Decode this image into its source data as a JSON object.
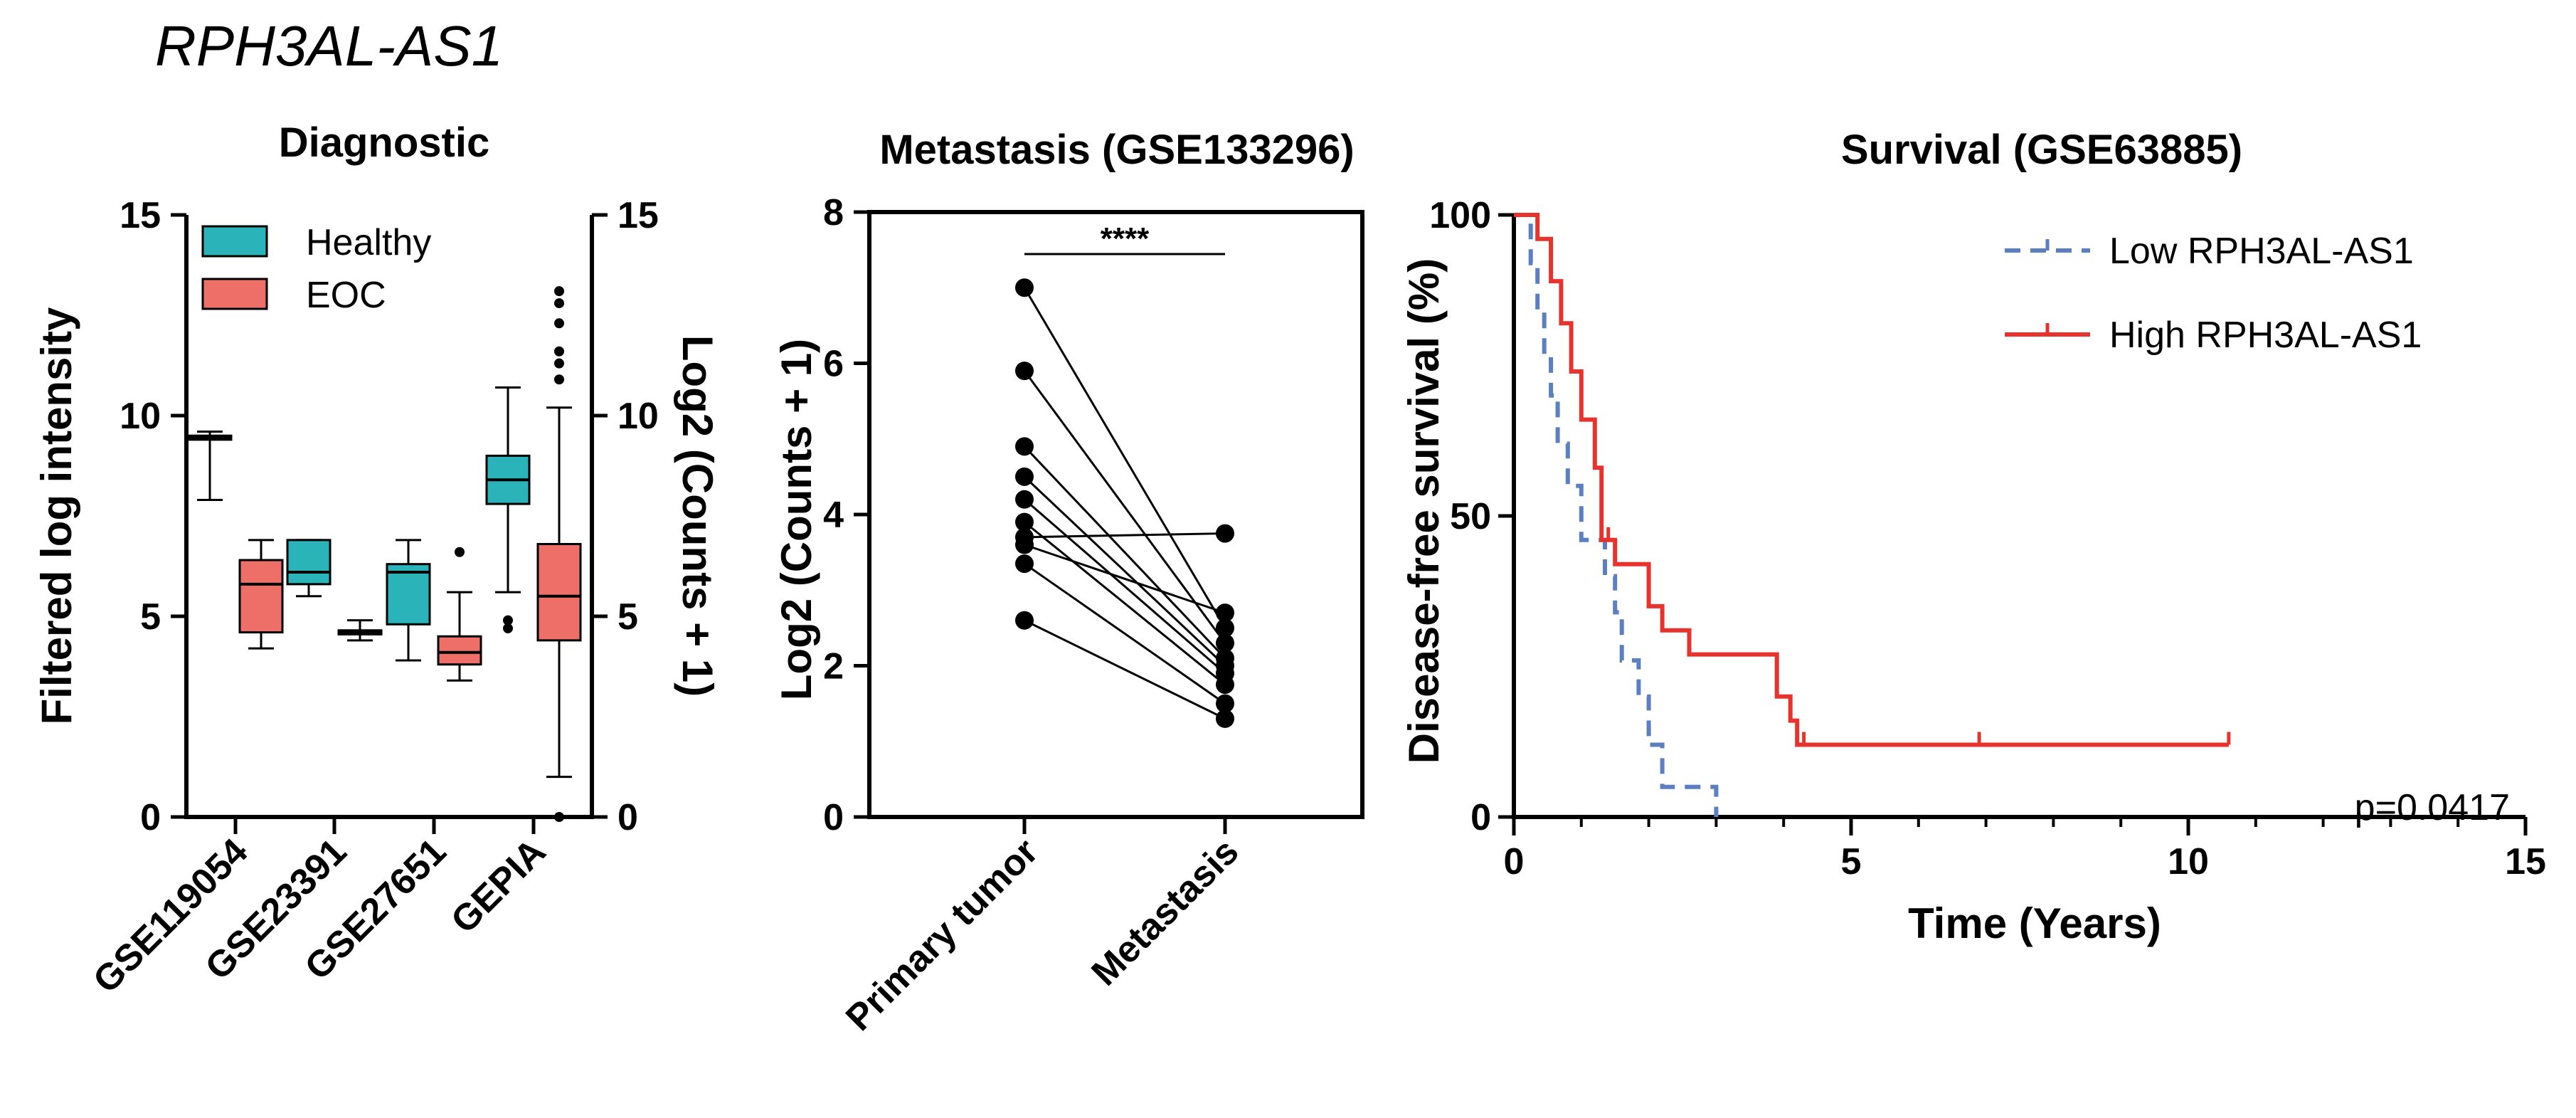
{
  "figure_title": "RPH3AL-AS1",
  "colors": {
    "healthy": "#2ab3b8",
    "eoc": "#ee6e68",
    "low": "#5b7fc0",
    "high": "#e8322d",
    "line": "#000000"
  },
  "chart_data": [
    {
      "type": "box",
      "title": "Diagnostic",
      "ylabel": "Filtered log intensity",
      "ylabel_right": "Log2 (Counts + 1)",
      "ylim": [
        0,
        15
      ],
      "yticks": [
        "0",
        "5",
        "10",
        "15"
      ],
      "yticks_right": [
        "0",
        "5",
        "10",
        "15"
      ],
      "categories": [
        "GSE119054",
        "GSE23391",
        "GSE27651",
        "GEPIA"
      ],
      "legend": [
        "Healthy",
        "EOC"
      ],
      "series": [
        {
          "name": "Healthy",
          "boxes": [
            {
              "category": "GSE119054",
              "min": 7.9,
              "q1": 9.4,
              "median": 9.45,
              "q3": 9.5,
              "max": 9.6,
              "outliers": []
            },
            {
              "category": "GSE23391",
              "min": 5.5,
              "q1": 5.8,
              "median": 6.1,
              "q3": 6.9,
              "max": 6.9,
              "outliers": []
            },
            {
              "category": "GSE27651",
              "min": 3.9,
              "q1": 4.8,
              "median": 6.1,
              "q3": 6.3,
              "max": 6.9,
              "outliers": []
            },
            {
              "category": "GEPIA",
              "min": 5.6,
              "q1": 7.8,
              "median": 8.4,
              "q3": 9.0,
              "max": 10.7,
              "outliers": [
                4.7,
                4.9
              ]
            }
          ]
        },
        {
          "name": "EOC",
          "boxes": [
            {
              "category": "GSE119054",
              "min": 4.2,
              "q1": 4.6,
              "median": 5.8,
              "q3": 6.4,
              "max": 6.9,
              "outliers": []
            },
            {
              "category": "GSE23391",
              "min": 4.4,
              "q1": 4.55,
              "median": 4.6,
              "q3": 4.65,
              "max": 4.9,
              "outliers": []
            },
            {
              "category": "GSE27651",
              "min": 3.4,
              "q1": 3.8,
              "median": 4.1,
              "q3": 4.5,
              "max": 5.6,
              "outliers": [
                6.6
              ]
            },
            {
              "category": "GEPIA",
              "min": 1.0,
              "q1": 4.4,
              "median": 5.5,
              "q3": 6.8,
              "max": 10.2,
              "outliers": [
                0.0,
                10.9,
                11.3,
                11.6,
                12.3,
                12.8,
                13.1
              ]
            }
          ]
        }
      ]
    },
    {
      "type": "paired_dot",
      "title": "Metastasis (GSE133296)",
      "ylabel": "Log2 (Counts + 1)",
      "ylim": [
        0,
        8
      ],
      "yticks": [
        "0",
        "2",
        "4",
        "6",
        "8"
      ],
      "categories": [
        "Primary tumor",
        "Metastasis"
      ],
      "significance": "****",
      "pairs": [
        [
          7.0,
          2.5
        ],
        [
          5.9,
          2.3
        ],
        [
          4.9,
          2.1
        ],
        [
          4.5,
          2.0
        ],
        [
          4.2,
          1.9
        ],
        [
          3.9,
          1.75
        ],
        [
          3.7,
          3.75
        ],
        [
          3.6,
          2.7
        ],
        [
          3.35,
          1.5
        ],
        [
          2.6,
          1.3
        ]
      ]
    },
    {
      "type": "line",
      "title": "Survival (GSE63885)",
      "xlabel": "Time (Years)",
      "ylabel": "Disease-free survival (%)",
      "xlim": [
        0,
        15
      ],
      "ylim": [
        0,
        100
      ],
      "xticks": [
        "0",
        "5",
        "10",
        "15"
      ],
      "yticks": [
        "0",
        "50",
        "100"
      ],
      "annotation": "p=0.0417",
      "legend": [
        "Low RPH3AL-AS1",
        "High RPH3AL-AS1"
      ],
      "series": [
        {
          "name": "Low RPH3AL-AS1",
          "style": "dashed",
          "steps": [
            [
              0,
              100
            ],
            [
              0.25,
              92
            ],
            [
              0.35,
              84
            ],
            [
              0.45,
              76
            ],
            [
              0.55,
              70
            ],
            [
              0.65,
              62
            ],
            [
              0.8,
              55
            ],
            [
              1.0,
              46
            ],
            [
              1.3,
              46
            ],
            [
              1.35,
              40
            ],
            [
              1.5,
              34
            ],
            [
              1.6,
              26
            ],
            [
              1.85,
              20
            ],
            [
              2.0,
              12
            ],
            [
              2.2,
              5
            ],
            [
              3.0,
              0
            ]
          ],
          "censors": []
        },
        {
          "name": "High RPH3AL-AS1",
          "style": "solid",
          "steps": [
            [
              0,
              100
            ],
            [
              0.35,
              96
            ],
            [
              0.55,
              89
            ],
            [
              0.7,
              82
            ],
            [
              0.85,
              74
            ],
            [
              1.0,
              66
            ],
            [
              1.2,
              58
            ],
            [
              1.3,
              46
            ],
            [
              1.5,
              42
            ],
            [
              2.0,
              35
            ],
            [
              2.2,
              31
            ],
            [
              2.6,
              27
            ],
            [
              3.9,
              20
            ],
            [
              4.1,
              16
            ],
            [
              4.2,
              12
            ],
            [
              10.6,
              12
            ]
          ],
          "censors": [
            [
              1.4,
              46
            ],
            [
              4.3,
              12
            ],
            [
              6.9,
              12
            ],
            [
              10.6,
              12
            ]
          ]
        }
      ]
    }
  ]
}
